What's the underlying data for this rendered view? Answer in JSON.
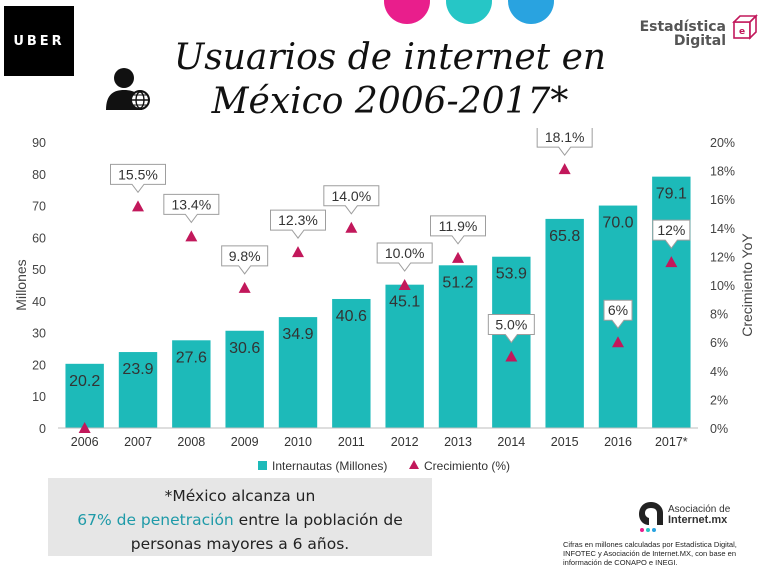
{
  "brand": {
    "uber": "UBER",
    "line1": "Estadística",
    "line2": "Digital"
  },
  "title": {
    "line1": "Usuarios de internet en",
    "line2": "México 2006-2017*"
  },
  "colors": {
    "bar": "#1dbab9",
    "marker": "#c2185b",
    "dot1": "#e91e8c",
    "dot2": "#26c6c6",
    "dot3": "#29a3e0",
    "accent_text": "#1e9aa8"
  },
  "chart_data": {
    "type": "bar",
    "categories": [
      "2006",
      "2007",
      "2008",
      "2009",
      "2010",
      "2011",
      "2012",
      "2013",
      "2014",
      "2015",
      "2016",
      "2017*"
    ],
    "series": [
      {
        "name": "Internautas (Millones)",
        "type": "bar",
        "axis": "left",
        "values": [
          20.2,
          23.9,
          27.6,
          30.6,
          34.9,
          40.6,
          45.1,
          51.2,
          53.9,
          65.8,
          70.0,
          79.1
        ],
        "labels": [
          "20.2",
          "23.9",
          "27.6",
          "30.6",
          "34.9",
          "40.6",
          "45.1",
          "51.2",
          "53.9",
          "65.8",
          "70.0",
          "79.1"
        ]
      },
      {
        "name": "Crecimiento (%)",
        "type": "scatter",
        "axis": "right",
        "values": [
          0,
          15.5,
          13.4,
          9.8,
          12.3,
          14.0,
          10.0,
          11.9,
          5.0,
          18.1,
          6.0,
          11.6
        ],
        "labels": [
          "",
          "15.5%",
          "13.4%",
          "9.8%",
          "12.3%",
          "14.0%",
          "10.0%",
          "11.9%",
          "5.0%",
          "18.1%",
          "6%",
          "12%"
        ],
        "label_position": [
          "none",
          "above",
          "above",
          "above",
          "above",
          "above",
          "above",
          "above",
          "above",
          "above",
          "above",
          "above"
        ]
      }
    ],
    "ylabel": "Millones",
    "ylim": [
      0,
      90
    ],
    "yticks": [
      "0",
      "10",
      "20",
      "30",
      "40",
      "50",
      "60",
      "70",
      "80",
      "90"
    ],
    "y2label": "Crecimiento YoY",
    "y2lim": [
      0,
      20
    ],
    "y2ticks": [
      "0%",
      "2%",
      "4%",
      "6%",
      "8%",
      "10%",
      "12%",
      "14%",
      "16%",
      "18%",
      "20%"
    ],
    "legend": [
      "Internautas (Millones)",
      "Crecimiento (%)"
    ],
    "legend_position": "bottom"
  },
  "note": {
    "line1": "*México alcanza un",
    "highlight": "67% de penetración",
    "line2_rest": " entre la población de",
    "line3": "personas mayores a 6 años."
  },
  "association": {
    "line1": "Asociación de",
    "line2": "Internet.mx"
  },
  "source": "Cifras en millones calculadas por Estadística Digital, INFOTEC y Asociación de Internet.MX, con base en información de CONAPO e INEGI."
}
